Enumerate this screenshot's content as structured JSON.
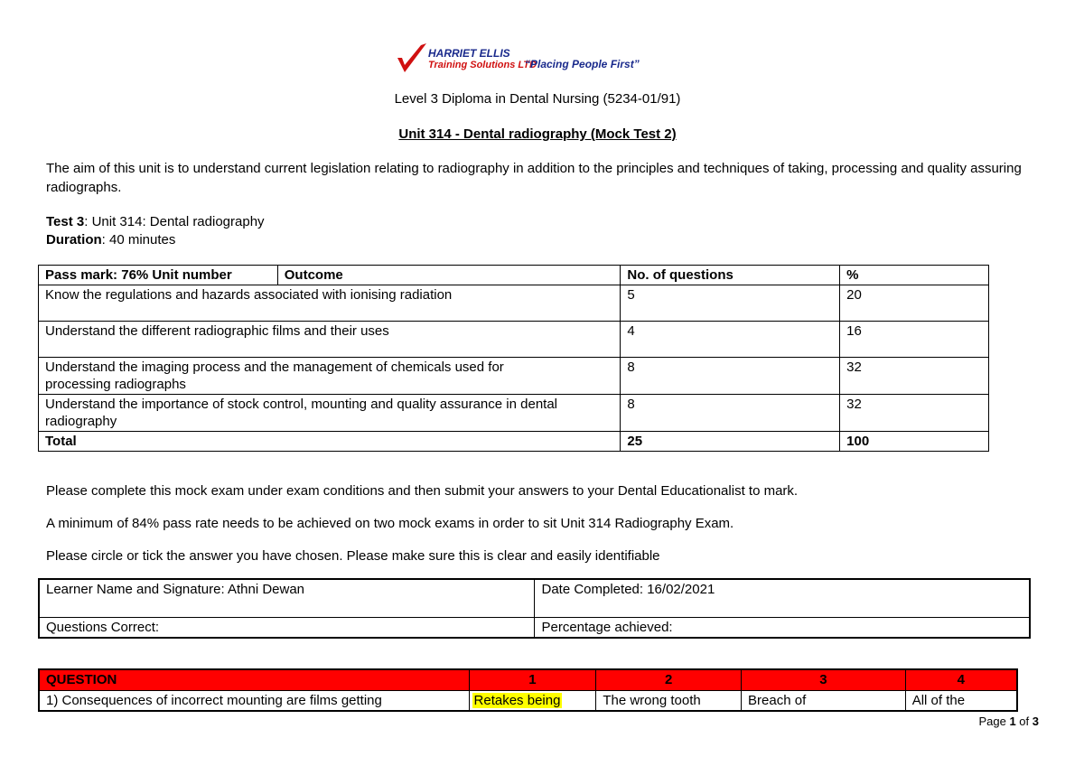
{
  "header": {
    "logo_line1": "HARRIET ELLIS",
    "logo_line2": "Training Solutions LTD",
    "slogan": "“Placing People First”",
    "brand_red": "#d01010",
    "brand_blue": "#1a2a8c"
  },
  "diploma": "Level 3 Diploma in Dental Nursing (5234-01/91)",
  "unit_title": "Unit 314 - Dental radiography (Mock Test 2)",
  "aim": "The aim of this unit is to understand current legislation relating to radiography in addition to the principles and techniques of taking, processing and quality assuring radiographs.",
  "test": {
    "label": "Test 3",
    "value": ": Unit 314: Dental radiography"
  },
  "duration": {
    "label": "Duration",
    "value": ": 40 minutes"
  },
  "outcomes": {
    "headers": [
      "Pass mark: 76% Unit number",
      "Outcome",
      "No. of questions",
      "%"
    ],
    "rows": [
      {
        "outcome": "Know the regulations and hazards associated with ionising radiation",
        "questions": "5",
        "percent": "20"
      },
      {
        "outcome": "Understand the different radiographic films and their uses",
        "questions": "4",
        "percent": "16"
      },
      {
        "outcome": "Understand the imaging process and the management of chemicals used for processing radiographs",
        "questions": "8",
        "percent": "32"
      },
      {
        "outcome": "Understand the importance of stock control, mounting and quality assurance in dental radiography",
        "questions": "8",
        "percent": "32"
      }
    ],
    "total": {
      "label": "Total",
      "questions": "25",
      "percent": "100"
    }
  },
  "instructions": [
    "Please complete this mock exam under exam conditions and then submit your answers to your Dental Educationalist to mark.",
    "A minimum of 84% pass rate needs to be achieved on two mock exams in order to sit Unit 314 Radiography Exam.",
    "Please circle or tick the answer you have chosen. Please make sure this is clear and easily identifiable"
  ],
  "learner": {
    "name": "Learner Name and Signature: Athni Dewan",
    "date": "Date Completed: 16/02/2021",
    "correct": "Questions Correct:",
    "percentage": "Percentage achieved:"
  },
  "questions": {
    "header": [
      "QUESTION",
      "1",
      "2",
      "3",
      "4"
    ],
    "header_color": "#ff0000",
    "highlight_color": "#ffff00",
    "rows": [
      {
        "question": "1) Consequences of incorrect mounting are films getting",
        "options": [
          "Retakes being",
          "The wrong tooth",
          "Breach of",
          "All of the"
        ],
        "selected": 0
      }
    ]
  },
  "footer": {
    "page_word": "Page",
    "page": "1",
    "of_word": "of",
    "total": "3"
  }
}
